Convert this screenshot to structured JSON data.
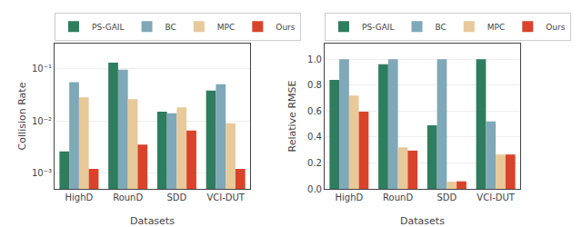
{
  "chart_data": [
    {
      "type": "bar",
      "xlabel": "Datasets",
      "ylabel": "Collision Rate",
      "categories": [
        "HighD",
        "RounD",
        "SDD",
        "VCI-DUT"
      ],
      "series": [
        {
          "name": "PS-GAIL",
          "color": "#2e7d5e",
          "values": [
            0.0026,
            0.13,
            0.015,
            0.038
          ]
        },
        {
          "name": "BC",
          "color": "#7fa8b8",
          "values": [
            0.055,
            0.095,
            0.014,
            0.05
          ]
        },
        {
          "name": "MPC",
          "color": "#e8c99a",
          "values": [
            0.028,
            0.026,
            0.018,
            0.009
          ]
        },
        {
          "name": "Ours",
          "color": "#d9432a",
          "values": [
            0.0012,
            0.0035,
            0.0065,
            0.0012
          ]
        }
      ],
      "log": "y",
      "ylim": [
        0.0005,
        0.3
      ],
      "yticks": [
        {
          "value": 0.001,
          "label": "10⁻³"
        },
        {
          "value": 0.01,
          "label": "10⁻²"
        },
        {
          "value": 0.1,
          "label": "10⁻¹"
        }
      ],
      "grid": true,
      "legend": "upper left"
    },
    {
      "type": "bar",
      "xlabel": "Datasets",
      "ylabel": "Relative RMSE",
      "categories": [
        "HighD",
        "RounD",
        "SDD",
        "VCI-DUT"
      ],
      "series": [
        {
          "name": "PS-GAIL",
          "color": "#2e7d5e",
          "values": [
            0.84,
            0.96,
            0.49,
            1.0
          ]
        },
        {
          "name": "BC",
          "color": "#7fa8b8",
          "values": [
            1.0,
            1.0,
            1.0,
            0.52
          ]
        },
        {
          "name": "MPC",
          "color": "#e8c99a",
          "values": [
            0.72,
            0.32,
            0.055,
            0.265
          ]
        },
        {
          "name": "Ours",
          "color": "#d9432a",
          "values": [
            0.595,
            0.295,
            0.058,
            0.265
          ]
        }
      ],
      "ylim": [
        0.0,
        1.12
      ],
      "yticks": [
        {
          "value": 0.0,
          "label": "0.0"
        },
        0.2,
        0.4,
        0.6,
        0.8,
        {
          "value": 1.0,
          "label": "1.0"
        }
      ],
      "grid": true,
      "legend": "upper left"
    }
  ]
}
